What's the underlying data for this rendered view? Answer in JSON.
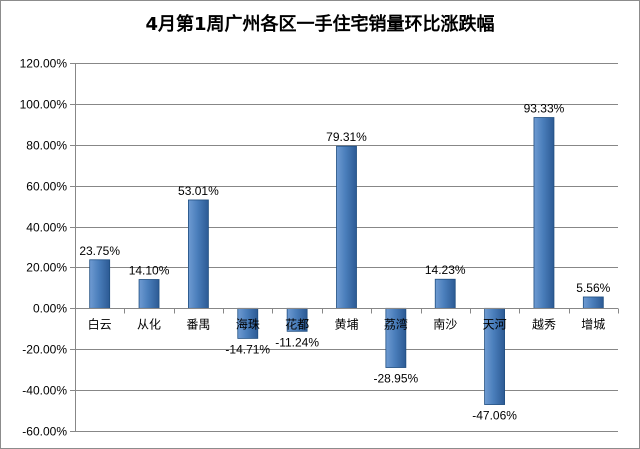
{
  "chart_data": {
    "type": "bar",
    "title": "4月第1周广州各区一手住宅销量环比涨跌幅",
    "categories": [
      "白云",
      "从化",
      "番禺",
      "海珠",
      "花都",
      "黄埔",
      "荔湾",
      "南沙",
      "天河",
      "越秀",
      "增城"
    ],
    "values": [
      23.75,
      14.1,
      53.01,
      -14.71,
      -11.24,
      79.31,
      -28.95,
      14.23,
      -47.06,
      93.33,
      5.56
    ],
    "value_labels": [
      "23.75%",
      "14.10%",
      "53.01%",
      "-14.71%",
      "-11.24%",
      "79.31%",
      "-28.95%",
      "14.23%",
      "-47.06%",
      "93.33%",
      "5.56%"
    ],
    "y_ticks": [
      120,
      100,
      80,
      60,
      40,
      20,
      0,
      -20,
      -40,
      -60
    ],
    "y_tick_labels": [
      "120.00%",
      "100.00%",
      "80.00%",
      "60.00%",
      "40.00%",
      "20.00%",
      "0.00%",
      "-20.00%",
      "-40.00%",
      "-60.00%"
    ],
    "ylim": [
      -60,
      120
    ],
    "xlabel": "",
    "ylabel": "",
    "grid": true,
    "legend": "none",
    "colors": {
      "bar_light": "#6f9bd2",
      "bar_mid": "#4a7ebb",
      "bar_dark": "#2c5a94",
      "bar_edge": "#1f4e80",
      "grid": "#878787",
      "axis": "#878787"
    }
  }
}
